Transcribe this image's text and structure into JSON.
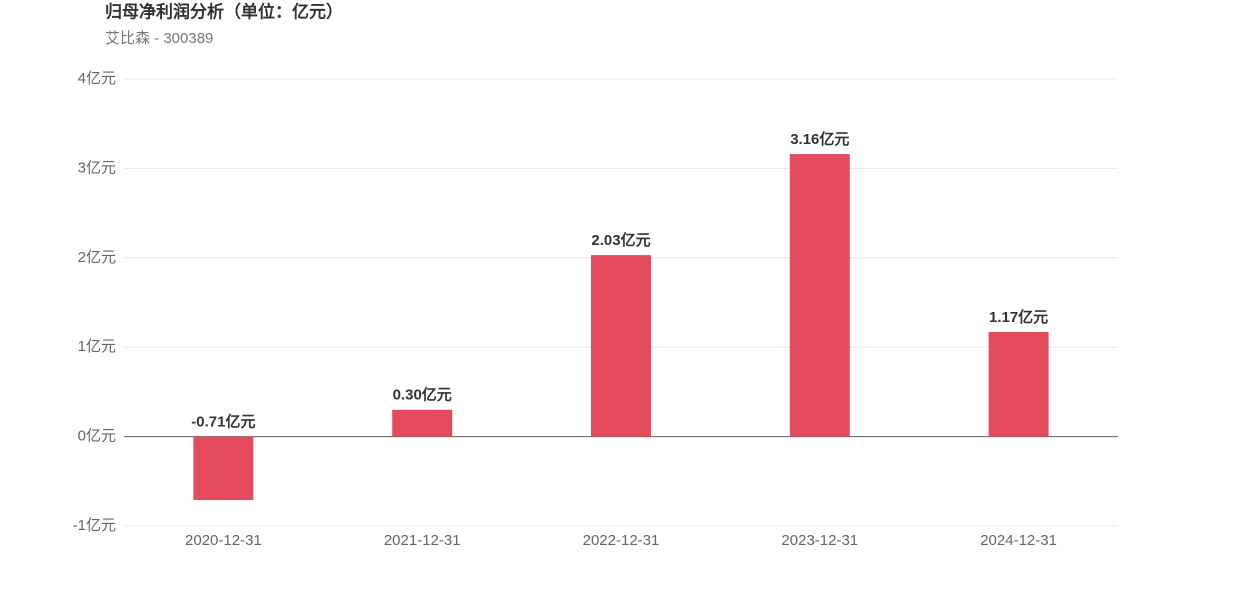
{
  "chart_data": {
    "type": "bar",
    "title": "归母净利润分析（单位：亿元）",
    "subtitle": "艾比森 - 300389",
    "categories": [
      "2020-12-31",
      "2021-12-31",
      "2022-12-31",
      "2023-12-31",
      "2024-12-31"
    ],
    "values": [
      -0.71,
      0.3,
      2.03,
      3.16,
      1.17
    ],
    "value_labels": [
      "-0.71亿元",
      "0.30亿元",
      "2.03亿元",
      "3.16亿元",
      "1.17亿元"
    ],
    "color": "#e44c5d",
    "ylim": [
      -1,
      4
    ],
    "yticks": [
      {
        "value": -1,
        "label": "-1亿元"
      },
      {
        "value": 0,
        "label": "0亿元"
      },
      {
        "value": 1,
        "label": "1亿元"
      },
      {
        "value": 2,
        "label": "2亿元"
      },
      {
        "value": 3,
        "label": "3亿元"
      },
      {
        "value": 4,
        "label": "4亿元"
      }
    ],
    "grid": true
  }
}
